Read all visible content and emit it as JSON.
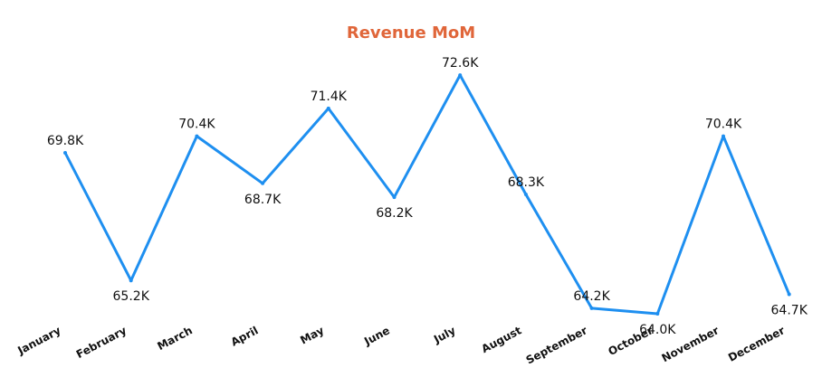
{
  "chart_data": {
    "type": "line",
    "title": "Revenue MoM",
    "xlabel": "",
    "ylabel": "",
    "categories": [
      "January",
      "February",
      "March",
      "April",
      "May",
      "June",
      "July",
      "August",
      "September",
      "October",
      "November",
      "December"
    ],
    "series": [
      {
        "values": [
          69.8,
          65.2,
          70.4,
          68.7,
          71.4,
          68.2,
          72.6,
          68.3,
          64.2,
          64.0,
          70.4,
          64.7
        ],
        "labels": [
          "69.8K",
          "65.2K",
          "70.4K",
          "68.7K",
          "71.4K",
          "68.2K",
          "72.6K",
          "68.3K",
          "64.2K",
          "64.0K",
          "70.4K",
          "64.7K"
        ],
        "color": "#1E8FF0"
      }
    ],
    "grid": false,
    "legend": "none"
  }
}
